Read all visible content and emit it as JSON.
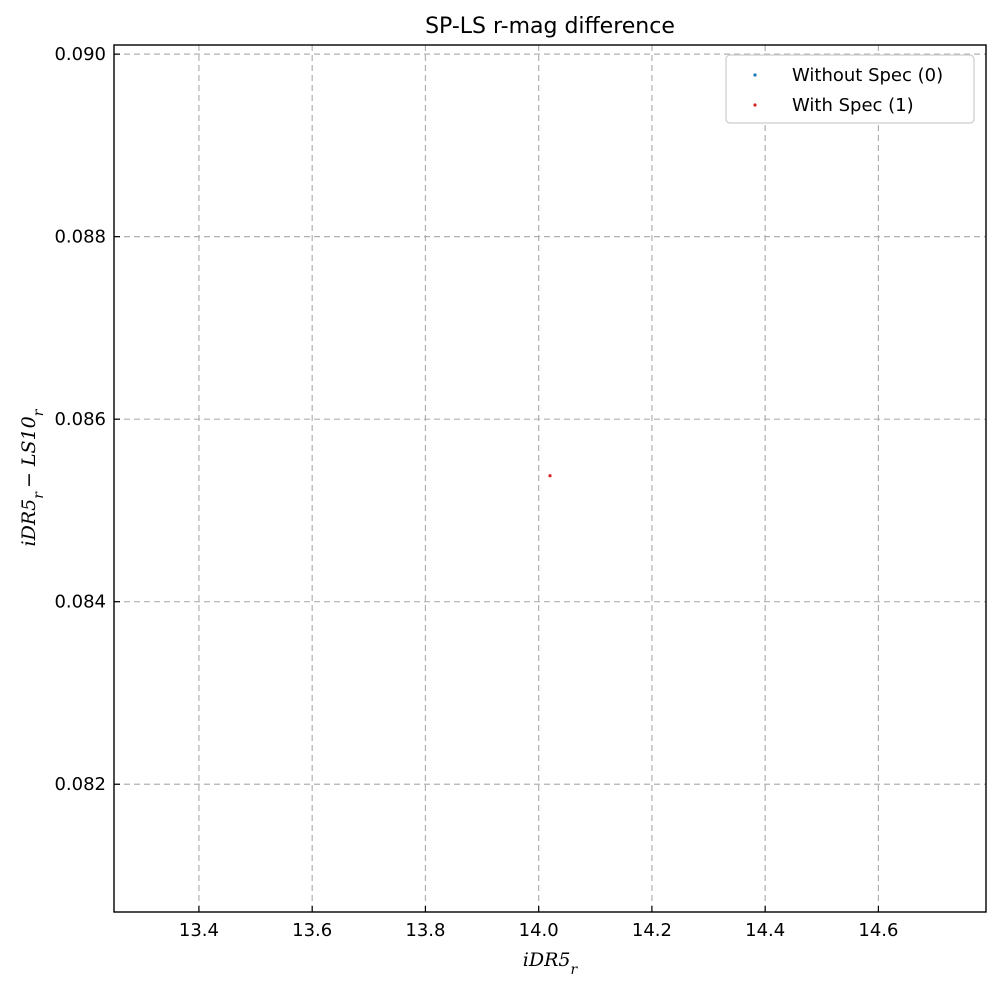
{
  "chart_data": {
    "type": "scatter",
    "title": "SP-LS r-mag difference",
    "xlabel": "iDR5_r",
    "ylabel": "iDR5_r − LS10_r",
    "xlim": [
      13.25,
      14.79
    ],
    "ylim": [
      0.0806,
      0.0901
    ],
    "x_ticks": [
      13.4,
      13.6,
      13.8,
      14.0,
      14.2,
      14.4,
      14.6
    ],
    "x_tick_labels": [
      "13.4",
      "13.6",
      "13.8",
      "14.0",
      "14.2",
      "14.4",
      "14.6"
    ],
    "y_ticks": [
      0.082,
      0.084,
      0.086,
      0.088,
      0.09
    ],
    "y_tick_labels": [
      "0.082",
      "0.084",
      "0.086",
      "0.088",
      "0.090"
    ],
    "grid": true,
    "legend_position": "top-right",
    "series": [
      {
        "name": "Without Spec (0)",
        "color": "#1f77b4",
        "points": []
      },
      {
        "name": "With Spec (1)",
        "color": "#d62728",
        "points": [
          {
            "x": 14.02,
            "y": 0.08538
          }
        ]
      }
    ]
  }
}
